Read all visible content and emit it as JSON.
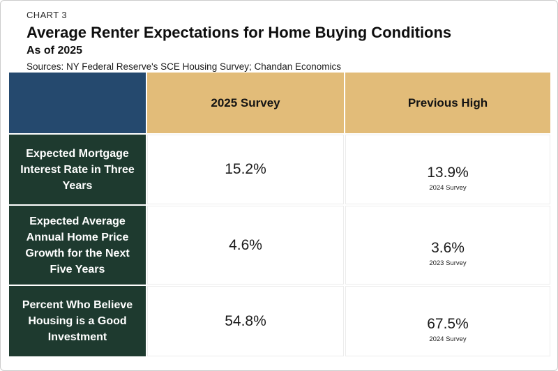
{
  "header": {
    "kicker": "CHART 3",
    "title": "Average Renter Expectations for Home Buying Conditions",
    "subtitle": "As of 2025",
    "sources": "Sources: NY Federal Reserve's SCE Housing Survey; Chandan Economics"
  },
  "table": {
    "columns": [
      "",
      "2025 Survey",
      "Previous High"
    ],
    "rows": [
      {
        "label": "Expected Mortgage\nInterest Rate in Three\nYears",
        "survey": "15.2%",
        "previous": "13.9%",
        "previous_note": "2024 Survey"
      },
      {
        "label": "Expected Average\nAnnual Home Price\nGrowth for the Next\nFive Years",
        "survey": "4.6%",
        "previous": "3.6%",
        "previous_note": "2023 Survey"
      },
      {
        "label": "Percent Who Believe\nHousing is a Good\nInvestment",
        "survey": "54.8%",
        "previous": "67.5%",
        "previous_note": "2024 Survey"
      }
    ]
  },
  "colors": {
    "header_corner_blue": "#25496E",
    "column_header_tan": "#E2BC79",
    "row_label_green": "#1E3A2F",
    "cell_background": "#FFFFFF",
    "grid_line": "#ECECEC"
  },
  "chart_data": {
    "type": "table",
    "title": "Average Renter Expectations for Home Buying Conditions",
    "subtitle": "As of 2025",
    "source": "Sources: NY Federal Reserve's SCE Housing Survey; Chandan Economics",
    "columns": [
      "",
      "2025 Survey",
      "Previous High"
    ],
    "unit": "%",
    "rows": [
      {
        "label": "Expected Mortgage Interest Rate in Three Years",
        "survey_2025": 15.2,
        "previous_high": 13.9,
        "previous_high_note": "2024 Survey"
      },
      {
        "label": "Expected Average Annual Home Price Growth for the Next Five Years",
        "survey_2025": 4.6,
        "previous_high": 3.6,
        "previous_high_note": "2023 Survey"
      },
      {
        "label": "Percent Who Believe Housing is a Good Investment",
        "survey_2025": 54.8,
        "previous_high": 67.5,
        "previous_high_note": "2024 Survey"
      }
    ]
  }
}
